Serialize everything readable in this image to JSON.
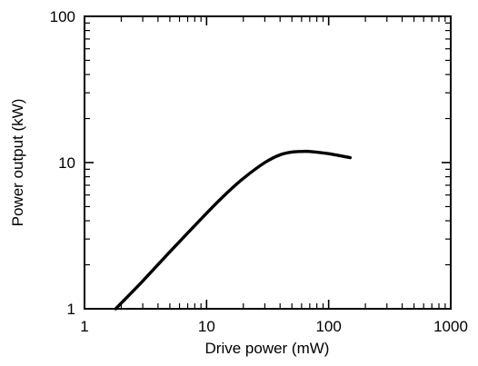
{
  "chart_data": {
    "type": "line",
    "xlabel": "Drive power (mW)",
    "ylabel": "Power output (kW)",
    "xscale": "log",
    "yscale": "log",
    "xlim": [
      1,
      1000
    ],
    "ylim": [
      1,
      100
    ],
    "grid": false,
    "x_tick_labels": [
      "1",
      "10",
      "100",
      "1000"
    ],
    "y_tick_labels": [
      "1",
      "10",
      "100"
    ],
    "series": [
      {
        "x": [
          1.8,
          3,
          5,
          10,
          15,
          20,
          30,
          40,
          50,
          60,
          70,
          100,
          150
        ],
        "y": [
          1.0,
          1.55,
          2.45,
          4.5,
          6.3,
          7.8,
          10.0,
          11.3,
          11.8,
          11.9,
          11.9,
          11.5,
          10.8
        ]
      }
    ]
  }
}
